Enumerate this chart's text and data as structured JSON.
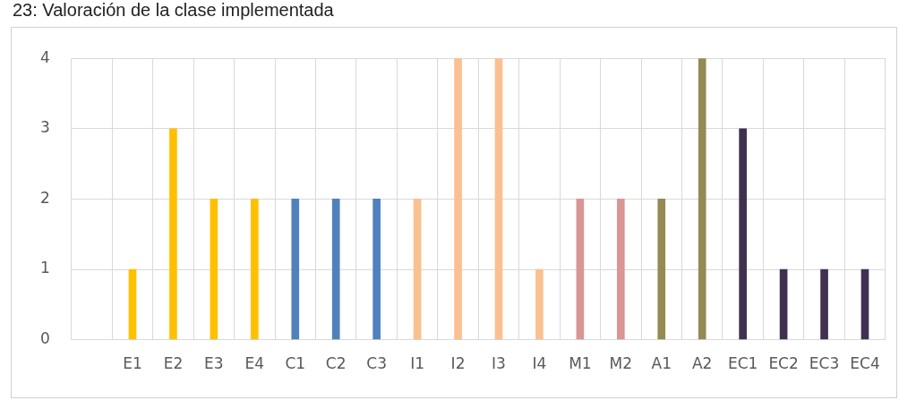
{
  "chart_data": {
    "type": "bar",
    "title": "23: Valoración de la clase implementada",
    "categories": [
      null,
      "E1",
      "E2",
      "E3",
      "E4",
      "C1",
      "C2",
      "C3",
      "I1",
      "I2",
      "I3",
      "I4",
      "M1",
      "M2",
      "A1",
      "A2",
      "EC1",
      "EC2",
      "EC3",
      "EC4"
    ],
    "values": [
      null,
      1,
      3,
      2,
      2,
      2,
      2,
      2,
      2,
      4,
      4,
      1,
      2,
      2,
      2,
      4,
      3,
      1,
      1,
      1
    ],
    "colors": [
      "#ffc000",
      "#ffc000",
      "#ffc000",
      "#ffc000",
      "#ffc000",
      "#4f81bd",
      "#4f81bd",
      "#4f81bd",
      "#fac090",
      "#fac090",
      "#fac090",
      "#fac090",
      "#d99694",
      "#d99694",
      "#948a54",
      "#948a54",
      "#403151",
      "#403151",
      "#403151",
      "#403151"
    ],
    "ylim": [
      0,
      4
    ],
    "yticks": [
      0,
      1,
      2,
      3,
      4
    ],
    "grid": true,
    "legend": false
  }
}
